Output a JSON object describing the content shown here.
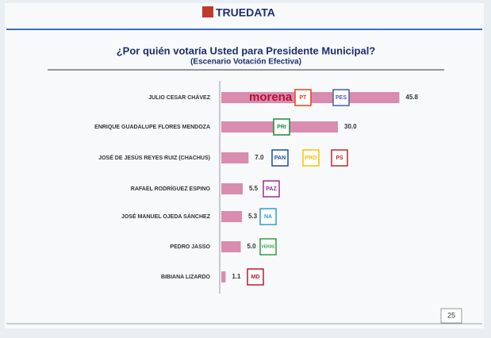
{
  "header": {
    "brand": "TRUEDATA"
  },
  "chart_data": {
    "type": "bar",
    "title": "¿Por quién votaría Usted para Presidente Municipal?",
    "subtitle": "(Escenario Votación Efectiva)",
    "categories": [
      "JULIO CESAR CHÁVEZ",
      "ENRIQUE GUADALUPE FLORES MENDOZA",
      "JOSÉ DE JESÚS REYES RUIZ (CHACHUS)",
      "RAFAEL RODRÍGUEZ ESPINO",
      "JOSÉ MANUEL OJEDA SÁNCHEZ",
      "PEDRO JASSO",
      "BIBIANA LIZARDO"
    ],
    "values": [
      45.8,
      30,
      7,
      5.5,
      5.3,
      5,
      1.1
    ],
    "value_labels": [
      "45.8",
      "30.0",
      "7.0",
      "5.5",
      "5.3",
      "5.0",
      "1.1"
    ],
    "color": "#d98bb0",
    "logos": [
      [
        "morena",
        "PT",
        "PES"
      ],
      [
        "PRI"
      ],
      [
        "PAN",
        "PRD",
        "PS"
      ],
      [
        "PAZ"
      ],
      [
        "NA"
      ],
      [
        "VERDE"
      ],
      [
        "MD"
      ]
    ]
  },
  "footer": {
    "page": "25"
  }
}
